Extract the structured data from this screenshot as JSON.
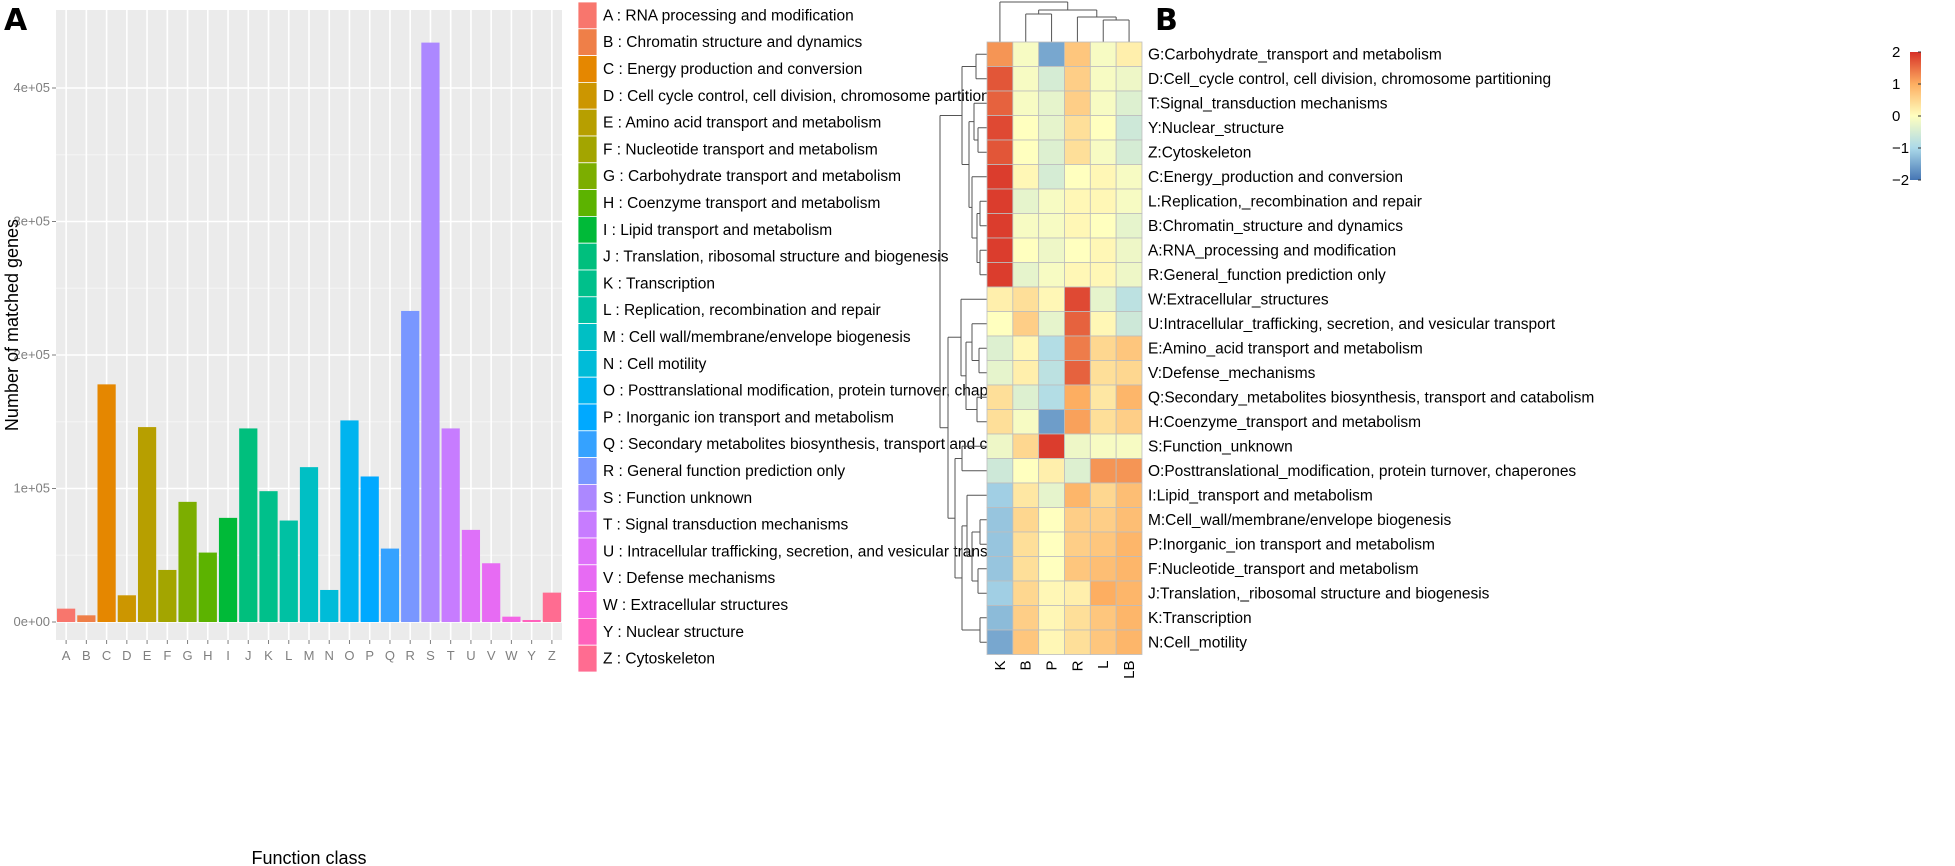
{
  "colors": {
    "panel_bg": "#ebebeb",
    "grid_major": "#ffffff",
    "grid_minor": "#f5f5f5",
    "heat_low": "#4575b4",
    "heat_mid": "#ffffbf",
    "heat_high": "#d73027",
    "cell_border": "#bdbdbd",
    "dendro": "#555555"
  },
  "chart_data": [
    {
      "type": "bar",
      "panel_label": "A",
      "xlabel": "Function class",
      "ylabel": "Number of matched genes",
      "ylim": [
        0,
        450000
      ],
      "yticks": [
        0,
        100000,
        200000,
        300000,
        400000
      ],
      "ytick_labels": [
        "0e+00",
        "1e+05",
        "2e+05",
        "3e+05",
        "4e+05"
      ],
      "categories": [
        "A",
        "B",
        "C",
        "D",
        "E",
        "F",
        "G",
        "H",
        "I",
        "J",
        "K",
        "L",
        "M",
        "N",
        "O",
        "P",
        "Q",
        "R",
        "S",
        "T",
        "U",
        "V",
        "W",
        "Y",
        "Z"
      ],
      "values": [
        10000,
        5000,
        178000,
        20000,
        146000,
        39000,
        90000,
        52000,
        78000,
        145000,
        98000,
        76000,
        116000,
        24000,
        151000,
        109000,
        55000,
        233000,
        434000,
        145000,
        69000,
        44000,
        4000,
        1500,
        22000
      ],
      "bar_colors": [
        "#F8766D",
        "#EF7F48",
        "#E58700",
        "#CC9600",
        "#B79F00",
        "#A3A500",
        "#7CAE00",
        "#5CB300",
        "#00BA38",
        "#00BF7D",
        "#00C08B",
        "#00C1A3",
        "#00BFC4",
        "#00BCD8",
        "#00B4EF",
        "#00A9FF",
        "#35A2FF",
        "#7997FF",
        "#AC88FF",
        "#C77CFF",
        "#DE71F9",
        "#E76BF3",
        "#F365E6",
        "#FF62BC",
        "#FF6C91"
      ],
      "legend": [
        "A : RNA processing and modification",
        "B : Chromatin structure and dynamics",
        "C : Energy production and conversion",
        "D : Cell cycle control, cell division, chromosome partitioning",
        "E : Amino acid transport and metabolism",
        "F : Nucleotide transport and metabolism",
        "G : Carbohydrate transport and metabolism",
        "H : Coenzyme transport and metabolism",
        "I : Lipid transport and metabolism",
        "J : Translation, ribosomal structure and biogenesis",
        "K : Transcription",
        "L : Replication, recombination and repair",
        "M : Cell wall/membrane/envelope biogenesis",
        "N : Cell motility",
        "O : Posttranslational modification, protein turnover, chaperones",
        "P : Inorganic ion transport and metabolism",
        "Q : Secondary metabolites biosynthesis, transport and catabolism",
        "R : General function prediction only",
        "S : Function unknown",
        "T : Signal transduction mechanisms",
        "U : Intracellular trafficking, secretion, and vesicular transport",
        "V : Defense mechanisms",
        "W : Extracellular structures",
        "Y : Nuclear structure",
        "Z : Cytoskeleton"
      ]
    },
    {
      "type": "heatmap",
      "panel_label": "B",
      "columns": [
        "K",
        "B",
        "P",
        "R",
        "L",
        "LB"
      ],
      "rows": [
        "G:Carbohydrate_transport and metabolism",
        "D:Cell_cycle control, cell division, chromosome partitioning",
        "T:Signal_transduction mechanisms",
        "Y:Nuclear_structure",
        "Z:Cytoskeleton",
        "C:Energy_production and conversion",
        "L:Replication,_recombination and repair",
        "B:Chromatin_structure and dynamics",
        "A:RNA_processing and modification",
        "R:General_function prediction only",
        "W:Extracellular_structures",
        "U:Intracellular_trafficking, secretion, and vesicular transport",
        "E:Amino_acid transport and metabolism",
        "V:Defense_mechanisms",
        "Q:Secondary_metabolites biosynthesis, transport and catabolism",
        "H:Coenzyme_transport and metabolism",
        "S:Function_unknown",
        "O:Posttranslational_modification, protein turnover, chaperones",
        "I:Lipid_transport and metabolism",
        "M:Cell_wall/membrane/envelope biogenesis",
        "P:Inorganic_ion transport and metabolism",
        "F:Nucleotide_transport and metabolism",
        "J:Translation,_ribosomal structure and biogenesis",
        "K:Transcription",
        "N:Cell_motility"
      ],
      "values": [
        [
          1.2,
          -0.1,
          -1.5,
          0.7,
          -0.1,
          0.2
        ],
        [
          1.7,
          -0.1,
          -0.5,
          0.6,
          -0.1,
          -0.2
        ],
        [
          1.6,
          -0.1,
          -0.3,
          0.6,
          -0.1,
          -0.4
        ],
        [
          1.8,
          0.0,
          -0.3,
          0.4,
          0.0,
          -0.6
        ],
        [
          1.7,
          0.0,
          -0.4,
          0.4,
          -0.1,
          -0.5
        ],
        [
          1.9,
          0.1,
          -0.5,
          0.0,
          0.1,
          -0.1
        ],
        [
          1.9,
          -0.3,
          -0.1,
          0.1,
          0.1,
          -0.1
        ],
        [
          1.9,
          -0.1,
          -0.1,
          0.1,
          0.0,
          -0.3
        ],
        [
          1.9,
          0.0,
          -0.2,
          0.0,
          0.1,
          -0.2
        ],
        [
          1.9,
          -0.3,
          -0.1,
          0.1,
          0.1,
          -0.2
        ],
        [
          0.2,
          0.4,
          0.1,
          1.8,
          -0.3,
          -0.8
        ],
        [
          0.0,
          0.6,
          -0.3,
          1.6,
          0.1,
          -0.6
        ],
        [
          -0.4,
          0.1,
          -0.9,
          1.4,
          0.5,
          0.7
        ],
        [
          -0.3,
          0.2,
          -0.8,
          1.6,
          0.4,
          0.5
        ],
        [
          0.4,
          -0.4,
          -0.9,
          1.0,
          0.3,
          0.9
        ],
        [
          0.4,
          -0.1,
          -1.6,
          1.1,
          0.4,
          0.6
        ],
        [
          -0.2,
          0.5,
          1.9,
          -0.2,
          -0.1,
          -0.1
        ],
        [
          -0.6,
          0.0,
          0.2,
          -0.4,
          1.2,
          1.2
        ],
        [
          -1.1,
          0.3,
          -0.3,
          0.9,
          0.5,
          0.8
        ],
        [
          -1.2,
          0.5,
          0.0,
          0.6,
          0.6,
          0.8
        ],
        [
          -1.2,
          0.4,
          0.0,
          0.6,
          0.7,
          0.9
        ],
        [
          -1.2,
          0.4,
          0.0,
          0.7,
          0.8,
          0.9
        ],
        [
          -1.1,
          0.5,
          0.1,
          0.2,
          1.0,
          0.9
        ],
        [
          -1.3,
          0.6,
          0.1,
          0.4,
          0.7,
          0.9
        ],
        [
          -1.5,
          0.7,
          0.1,
          0.4,
          0.7,
          0.9
        ]
      ],
      "colorbar": {
        "range": [
          -2,
          2
        ],
        "ticks": [
          2,
          1,
          0,
          -1,
          -2
        ],
        "tick_labels": [
          "2",
          "1",
          "0",
          "−1",
          "−2"
        ]
      }
    }
  ]
}
